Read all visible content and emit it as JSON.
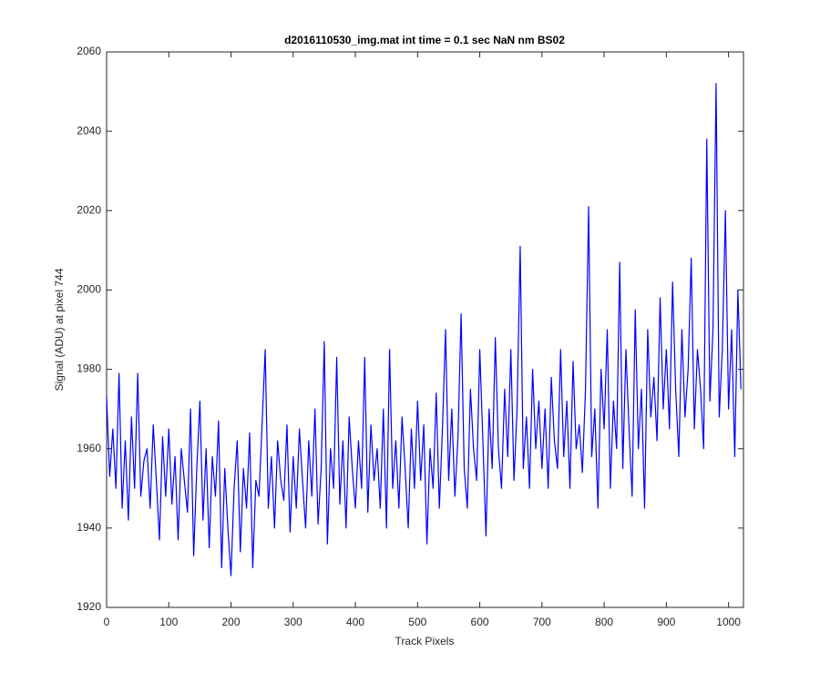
{
  "chart_data": {
    "type": "line",
    "title": "d2016110530_img.mat int time = 0.1 sec  NaN nm BS02",
    "xlabel": "Track Pixels",
    "ylabel": "Signal (ADU) at pixel 744",
    "xlim": [
      0,
      1024
    ],
    "ylim": [
      1920,
      2060
    ],
    "xticks": [
      0,
      100,
      200,
      300,
      400,
      500,
      600,
      700,
      800,
      900,
      1000
    ],
    "yticks": [
      1920,
      1940,
      1960,
      1980,
      2000,
      2020,
      2040,
      2060
    ],
    "x": [
      0,
      5,
      10,
      15,
      20,
      25,
      30,
      35,
      40,
      45,
      50,
      55,
      60,
      65,
      70,
      75,
      80,
      85,
      90,
      95,
      100,
      105,
      110,
      115,
      120,
      125,
      130,
      135,
      140,
      145,
      150,
      155,
      160,
      165,
      170,
      175,
      180,
      185,
      190,
      195,
      200,
      205,
      210,
      215,
      220,
      225,
      230,
      235,
      240,
      245,
      250,
      255,
      260,
      265,
      270,
      275,
      280,
      285,
      290,
      295,
      300,
      305,
      310,
      315,
      320,
      325,
      330,
      335,
      340,
      345,
      350,
      355,
      360,
      365,
      370,
      375,
      380,
      385,
      390,
      395,
      400,
      405,
      410,
      415,
      420,
      425,
      430,
      435,
      440,
      445,
      450,
      455,
      460,
      465,
      470,
      475,
      480,
      485,
      490,
      495,
      500,
      505,
      510,
      515,
      520,
      525,
      530,
      535,
      540,
      545,
      550,
      555,
      560,
      565,
      570,
      575,
      580,
      585,
      590,
      595,
      600,
      605,
      610,
      615,
      620,
      625,
      630,
      635,
      640,
      645,
      650,
      655,
      660,
      665,
      670,
      675,
      680,
      685,
      690,
      695,
      700,
      705,
      710,
      715,
      720,
      725,
      730,
      735,
      740,
      745,
      750,
      755,
      760,
      765,
      770,
      775,
      780,
      785,
      790,
      795,
      800,
      805,
      810,
      815,
      820,
      825,
      830,
      835,
      840,
      845,
      850,
      855,
      860,
      865,
      870,
      875,
      880,
      885,
      890,
      895,
      900,
      905,
      910,
      915,
      920,
      925,
      930,
      935,
      940,
      945,
      950,
      955,
      960,
      965,
      970,
      975,
      980,
      985,
      990,
      995,
      1000,
      1005,
      1010,
      1015,
      1020
    ],
    "series": [
      {
        "color": "#0000ff",
        "values": [
          1973,
          1953,
          1965,
          1950,
          1979,
          1945,
          1962,
          1942,
          1968,
          1950,
          1979,
          1948,
          1957,
          1960,
          1945,
          1966,
          1952,
          1937,
          1963,
          1948,
          1965,
          1946,
          1958,
          1937,
          1960,
          1952,
          1944,
          1970,
          1933,
          1955,
          1972,
          1942,
          1960,
          1935,
          1958,
          1948,
          1967,
          1930,
          1955,
          1940,
          1928,
          1950,
          1962,
          1934,
          1955,
          1945,
          1964,
          1930,
          1952,
          1948,
          1966,
          1985,
          1945,
          1958,
          1940,
          1962,
          1952,
          1947,
          1966,
          1939,
          1958,
          1945,
          1965,
          1952,
          1940,
          1962,
          1948,
          1970,
          1941,
          1955,
          1987,
          1936,
          1960,
          1950,
          1983,
          1946,
          1962,
          1940,
          1968,
          1955,
          1945,
          1962,
          1950,
          1983,
          1944,
          1966,
          1952,
          1960,
          1945,
          1970,
          1940,
          1985,
          1950,
          1962,
          1945,
          1968,
          1955,
          1940,
          1965,
          1950,
          1972,
          1952,
          1966,
          1936,
          1960,
          1950,
          1974,
          1945,
          1965,
          1990,
          1952,
          1970,
          1948,
          1963,
          1994,
          1955,
          1945,
          1975,
          1960,
          1952,
          1985,
          1962,
          1938,
          1970,
          1955,
          1988,
          1960,
          1950,
          1975,
          1958,
          1985,
          1952,
          1970,
          2011,
          1955,
          1968,
          1950,
          1980,
          1960,
          1972,
          1955,
          1970,
          1950,
          1978,
          1962,
          1955,
          1985,
          1958,
          1972,
          1950,
          1982,
          1960,
          1966,
          1954,
          1975,
          2021,
          1958,
          1970,
          1945,
          1980,
          1965,
          1990,
          1950,
          1972,
          1960,
          2007,
          1955,
          1985,
          1965,
          1948,
          1995,
          1960,
          1975,
          1945,
          1990,
          1968,
          1978,
          1962,
          1998,
          1970,
          1985,
          1965,
          2002,
          1975,
          1958,
          1990,
          1968,
          1980,
          2008,
          1965,
          1985,
          1975,
          1960,
          2038,
          1972,
          1990,
          2052,
          1968,
          1985,
          2020,
          1970,
          1990,
          1958,
          2000,
          1975
        ]
      }
    ]
  }
}
